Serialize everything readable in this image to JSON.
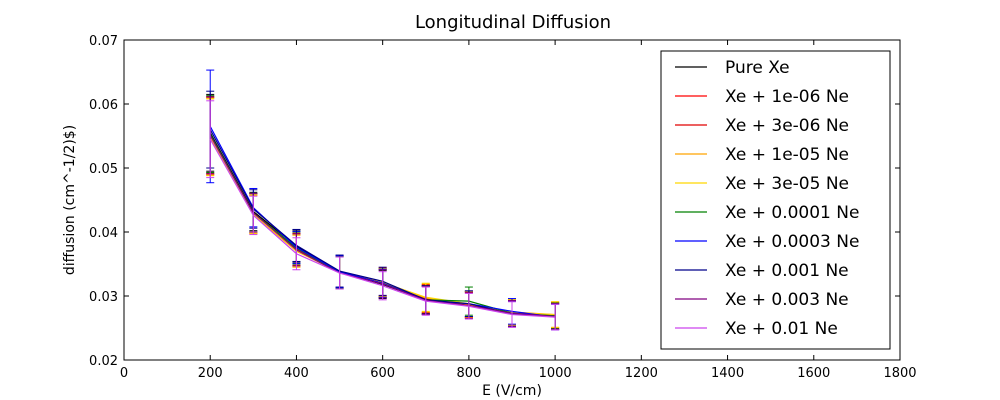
{
  "chart_data": {
    "type": "line",
    "title": "Longitudinal Diffusion",
    "xlabel": "E (V/cm)",
    "ylabel": "diffusion (cm^-1/2)$)",
    "xlim": [
      0,
      1800
    ],
    "ylim": [
      0.02,
      0.07
    ],
    "x_ticks": [
      "0",
      "200",
      "400",
      "600",
      "800",
      "1000",
      "1200",
      "1400",
      "1600",
      "1800"
    ],
    "y_ticks": [
      "0.02",
      "0.03",
      "0.04",
      "0.05",
      "0.06",
      "0.07"
    ],
    "legend_position": "top-right",
    "grid": false,
    "x": [
      200,
      300,
      400,
      500,
      600,
      700,
      800,
      900,
      1000
    ],
    "series": [
      {
        "name": "Pure Xe",
        "color": "#000000",
        "values": [
          0.0555,
          0.0432,
          0.0378,
          0.0338,
          0.0318,
          0.0294,
          0.0287,
          0.0272,
          0.0268
        ],
        "error": [
          0.006,
          0.003,
          0.0025,
          0.0025,
          0.0022,
          0.0022,
          0.002,
          0.002,
          0.002
        ]
      },
      {
        "name": "Xe + 1e-06 Ne",
        "color": "#ff0000",
        "values": [
          0.055,
          0.0428,
          0.0372,
          0.0338,
          0.0322,
          0.0296,
          0.0286,
          0.0274,
          0.027
        ],
        "error": [
          0.006,
          0.003,
          0.0025,
          0.0025,
          0.0022,
          0.0022,
          0.002,
          0.002,
          0.002
        ]
      },
      {
        "name": "Xe + 3e-06 Ne",
        "color": "#e00000",
        "values": [
          0.0552,
          0.043,
          0.0373,
          0.0336,
          0.032,
          0.0295,
          0.0286,
          0.0273,
          0.027
        ],
        "error": [
          0.006,
          0.003,
          0.0025,
          0.0025,
          0.0022,
          0.0022,
          0.002,
          0.002,
          0.002
        ]
      },
      {
        "name": "Xe + 1e-05 Ne",
        "color": "#ffa500",
        "values": [
          0.0548,
          0.0427,
          0.037,
          0.0337,
          0.0321,
          0.0297,
          0.0287,
          0.0275,
          0.0271
        ],
        "error": [
          0.006,
          0.003,
          0.0025,
          0.0025,
          0.0022,
          0.0022,
          0.002,
          0.002,
          0.002
        ]
      },
      {
        "name": "Xe + 3e-05 Ne",
        "color": "#ffd700",
        "values": [
          0.0549,
          0.0428,
          0.0371,
          0.0337,
          0.0321,
          0.0298,
          0.0288,
          0.0274,
          0.0271
        ],
        "error": [
          0.006,
          0.003,
          0.0025,
          0.0025,
          0.0022,
          0.0022,
          0.002,
          0.002,
          0.002
        ]
      },
      {
        "name": "Xe + 0.0001 Ne",
        "color": "#008000",
        "values": [
          0.0553,
          0.043,
          0.0375,
          0.0337,
          0.032,
          0.0294,
          0.0292,
          0.0273,
          0.0269
        ],
        "error": [
          0.006,
          0.003,
          0.0025,
          0.0025,
          0.0022,
          0.0022,
          0.0022,
          0.002,
          0.002
        ]
      },
      {
        "name": "Xe + 0.0003 Ne",
        "color": "#0000ff",
        "values": [
          0.0565,
          0.0438,
          0.0376,
          0.0338,
          0.032,
          0.0293,
          0.0288,
          0.0276,
          0.0267
        ],
        "error": [
          0.0088,
          0.003,
          0.0025,
          0.0025,
          0.0022,
          0.0022,
          0.002,
          0.002,
          0.002
        ]
      },
      {
        "name": "Xe + 0.001 Ne",
        "color": "#00008b",
        "values": [
          0.056,
          0.0436,
          0.0379,
          0.0339,
          0.0323,
          0.0294,
          0.0288,
          0.0272,
          0.0268
        ],
        "error": [
          0.006,
          0.003,
          0.0025,
          0.0025,
          0.0022,
          0.0022,
          0.002,
          0.002,
          0.002
        ]
      },
      {
        "name": "Xe + 0.003 Ne",
        "color": "#800080",
        "values": [
          0.0551,
          0.043,
          0.0372,
          0.0336,
          0.0319,
          0.0293,
          0.0285,
          0.0273,
          0.0268
        ],
        "error": [
          0.006,
          0.003,
          0.0025,
          0.0025,
          0.0022,
          0.0022,
          0.002,
          0.002,
          0.002
        ]
      },
      {
        "name": "Xe + 0.01 Ne",
        "color": "#cc44ee",
        "values": [
          0.0545,
          0.0426,
          0.0366,
          0.0336,
          0.0316,
          0.0292,
          0.0284,
          0.0271,
          0.0267
        ],
        "error": [
          0.006,
          0.003,
          0.0025,
          0.0025,
          0.0022,
          0.0022,
          0.002,
          0.002,
          0.002
        ]
      }
    ]
  }
}
